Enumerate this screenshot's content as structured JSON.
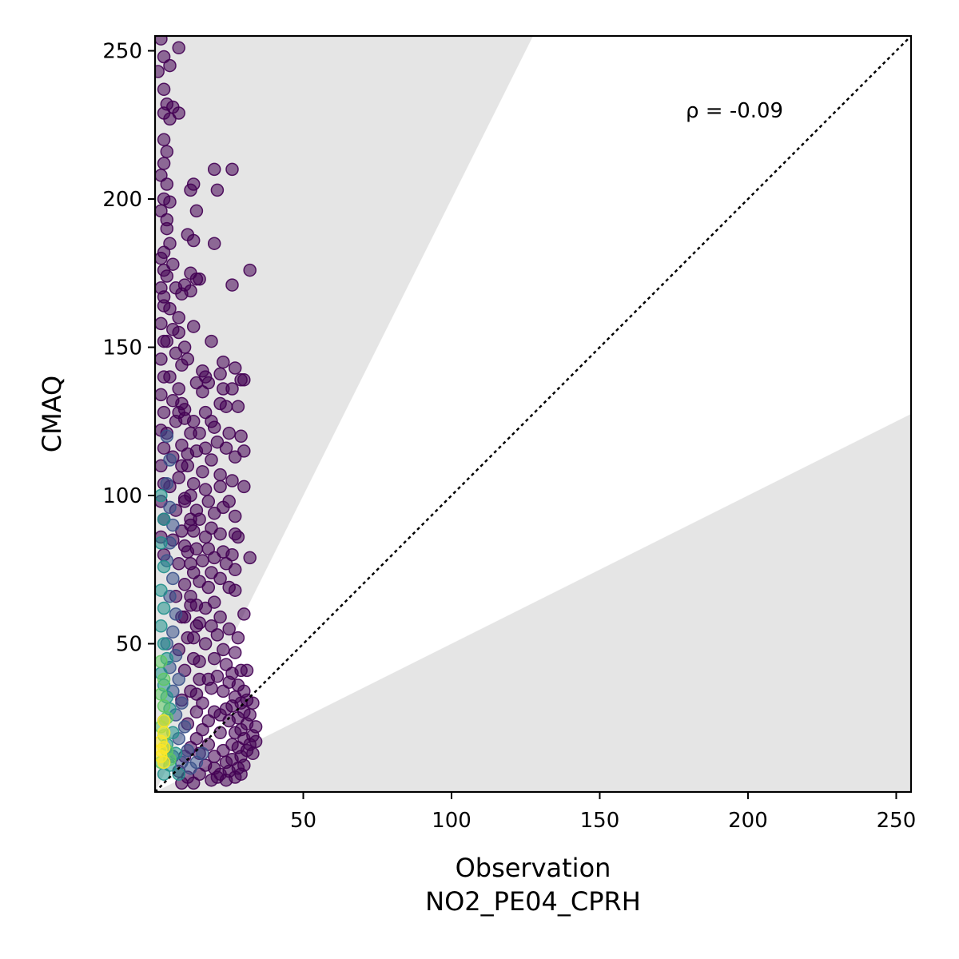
{
  "chart_data": {
    "type": "scatter",
    "title": "",
    "xlabel": "Observation",
    "xlabel_line2": "NO2_PE04_CPRH",
    "ylabel": "CMAQ",
    "xlim": [
      0,
      255
    ],
    "ylim": [
      0,
      255
    ],
    "xticks": [
      50,
      100,
      150,
      200,
      250
    ],
    "yticks": [
      50,
      100,
      150,
      200,
      250
    ],
    "annotation": "ρ = -0.09",
    "reference_line": {
      "style": "dotted",
      "slope": 1,
      "color": "#000000"
    },
    "shaded_bands": [
      {
        "description": "region above y = 2x",
        "slope": 2,
        "side": "above"
      },
      {
        "description": "region below y = 0.5x",
        "slope": 0.5,
        "side": "below"
      }
    ],
    "band_color": "#e5e5e5",
    "colormap": [
      "#440154",
      "#3b528b",
      "#21918c",
      "#5ec962",
      "#fde725"
    ],
    "colormap_name": "viridis (point density)",
    "marker_alpha": 0.55,
    "points": [
      [
        2,
        254,
        0
      ],
      [
        3,
        248,
        0
      ],
      [
        1,
        243,
        0
      ],
      [
        5,
        245,
        0
      ],
      [
        8,
        251,
        0
      ],
      [
        3,
        237,
        0
      ],
      [
        4,
        232,
        0
      ],
      [
        3,
        229,
        0
      ],
      [
        6,
        231,
        0
      ],
      [
        8,
        229,
        0
      ],
      [
        5,
        227,
        0
      ],
      [
        3,
        220,
        0
      ],
      [
        4,
        216,
        0
      ],
      [
        3,
        212,
        0
      ],
      [
        2,
        208,
        0
      ],
      [
        4,
        205,
        0
      ],
      [
        3,
        200,
        0
      ],
      [
        5,
        199,
        0
      ],
      [
        2,
        196,
        0
      ],
      [
        4,
        193,
        0
      ],
      [
        20,
        210,
        0
      ],
      [
        26,
        210,
        0
      ],
      [
        13,
        205,
        0
      ],
      [
        12,
        203,
        0
      ],
      [
        21,
        203,
        0
      ],
      [
        14,
        196,
        0
      ],
      [
        11,
        188,
        0
      ],
      [
        13,
        186,
        0
      ],
      [
        20,
        185,
        0
      ],
      [
        32,
        176,
        0
      ],
      [
        26,
        171,
        0
      ],
      [
        12,
        175,
        0
      ],
      [
        14,
        173,
        0
      ],
      [
        15,
        173,
        0
      ],
      [
        10,
        171,
        0
      ],
      [
        9,
        168,
        0
      ],
      [
        12,
        169,
        0
      ],
      [
        13,
        157,
        0
      ],
      [
        19,
        152,
        0
      ],
      [
        8,
        155,
        0
      ],
      [
        10,
        150,
        0
      ],
      [
        11,
        146,
        0
      ],
      [
        23,
        145,
        0
      ],
      [
        22,
        141,
        0
      ],
      [
        27,
        143,
        0
      ],
      [
        29,
        139,
        0
      ],
      [
        30,
        139,
        0
      ],
      [
        16,
        142,
        0
      ],
      [
        17,
        140,
        0
      ],
      [
        18,
        138,
        0
      ],
      [
        14,
        138,
        0
      ],
      [
        16,
        135,
        0
      ],
      [
        23,
        136,
        0
      ],
      [
        26,
        136,
        0
      ],
      [
        28,
        130,
        0
      ],
      [
        22,
        131,
        0
      ],
      [
        24,
        130,
        0
      ],
      [
        17,
        128,
        0
      ],
      [
        19,
        125,
        0
      ],
      [
        13,
        125,
        0
      ],
      [
        10,
        126,
        0
      ],
      [
        8,
        128,
        0
      ],
      [
        9,
        131,
        0
      ],
      [
        12,
        121,
        0
      ],
      [
        15,
        121,
        0
      ],
      [
        20,
        123,
        0
      ],
      [
        25,
        121,
        0
      ],
      [
        29,
        120,
        0
      ],
      [
        21,
        118,
        0
      ],
      [
        24,
        116,
        0
      ],
      [
        30,
        115,
        0
      ],
      [
        27,
        113,
        0
      ],
      [
        17,
        116,
        0
      ],
      [
        14,
        115,
        0
      ],
      [
        19,
        112,
        0
      ],
      [
        11,
        114,
        0
      ],
      [
        9,
        110,
        0
      ],
      [
        16,
        108,
        0
      ],
      [
        22,
        107,
        0
      ],
      [
        26,
        105,
        0
      ],
      [
        30,
        103,
        0
      ],
      [
        22,
        103,
        0
      ],
      [
        17,
        102,
        0
      ],
      [
        13,
        104,
        0
      ],
      [
        10,
        98,
        0
      ],
      [
        12,
        100,
        0
      ],
      [
        18,
        98,
        0
      ],
      [
        25,
        98,
        0
      ],
      [
        23,
        96,
        0
      ],
      [
        14,
        95,
        0
      ],
      [
        20,
        94,
        0
      ],
      [
        27,
        93,
        0
      ],
      [
        15,
        92,
        0
      ],
      [
        12,
        90,
        0
      ],
      [
        19,
        89,
        0
      ],
      [
        27,
        87,
        0
      ],
      [
        28,
        86,
        0
      ],
      [
        22,
        87,
        0
      ],
      [
        17,
        86,
        0
      ],
      [
        13,
        88,
        0
      ],
      [
        10,
        83,
        0
      ],
      [
        14,
        82,
        0
      ],
      [
        18,
        82,
        0
      ],
      [
        23,
        81,
        0
      ],
      [
        26,
        80,
        0
      ],
      [
        32,
        79,
        0
      ],
      [
        20,
        79,
        0
      ],
      [
        16,
        78,
        0
      ],
      [
        24,
        77,
        0
      ],
      [
        12,
        77,
        0
      ],
      [
        27,
        75,
        0
      ],
      [
        19,
        74,
        0
      ],
      [
        22,
        72,
        0
      ],
      [
        15,
        71,
        0
      ],
      [
        25,
        69,
        0
      ],
      [
        27,
        68,
        0
      ],
      [
        18,
        69,
        0
      ],
      [
        12,
        66,
        0
      ],
      [
        20,
        64,
        0
      ],
      [
        14,
        63,
        0
      ],
      [
        17,
        62,
        0
      ],
      [
        30,
        60,
        0
      ],
      [
        22,
        59,
        0
      ],
      [
        10,
        59,
        0
      ],
      [
        15,
        57,
        0
      ],
      [
        19,
        56,
        0
      ],
      [
        25,
        55,
        0
      ],
      [
        21,
        53,
        0
      ],
      [
        28,
        52,
        0
      ],
      [
        13,
        52,
        0
      ],
      [
        17,
        50,
        0
      ],
      [
        23,
        48,
        0
      ],
      [
        27,
        47,
        0
      ],
      [
        20,
        45,
        0
      ],
      [
        15,
        44,
        0
      ],
      [
        24,
        43,
        0
      ],
      [
        31,
        41,
        0
      ],
      [
        29,
        41,
        0
      ],
      [
        26,
        40,
        0
      ],
      [
        21,
        39,
        0
      ],
      [
        18,
        38,
        0
      ],
      [
        25,
        37,
        0
      ],
      [
        28,
        36,
        0
      ],
      [
        30,
        34,
        0
      ],
      [
        23,
        34,
        0
      ],
      [
        27,
        32,
        0
      ],
      [
        31,
        31,
        0
      ],
      [
        29,
        30,
        0
      ],
      [
        33,
        30,
        0
      ],
      [
        26,
        29,
        0
      ],
      [
        24,
        28,
        0
      ],
      [
        30,
        27,
        0
      ],
      [
        32,
        26,
        0
      ],
      [
        28,
        25,
        0
      ],
      [
        22,
        26,
        0
      ],
      [
        25,
        24,
        0
      ],
      [
        31,
        23,
        0
      ],
      [
        34,
        22,
        0
      ],
      [
        29,
        21,
        0
      ],
      [
        27,
        20,
        0
      ],
      [
        33,
        19,
        0
      ],
      [
        30,
        18,
        0
      ],
      [
        34,
        17,
        0
      ],
      [
        32,
        16,
        0
      ],
      [
        28,
        15,
        0
      ],
      [
        31,
        14,
        0
      ],
      [
        33,
        13,
        0
      ],
      [
        29,
        12,
        0
      ],
      [
        26,
        11,
        0
      ],
      [
        24,
        10,
        0
      ],
      [
        30,
        9,
        0
      ],
      [
        28,
        8,
        0
      ],
      [
        25,
        7,
        0
      ],
      [
        29,
        6,
        0
      ],
      [
        27,
        5,
        0
      ],
      [
        22,
        6,
        0
      ],
      [
        20,
        8,
        0
      ],
      [
        17,
        9,
        0
      ],
      [
        24,
        4,
        0
      ],
      [
        21,
        5,
        0
      ],
      [
        19,
        4,
        0
      ],
      [
        15,
        6,
        0
      ],
      [
        13,
        3,
        0
      ],
      [
        11,
        5,
        0
      ],
      [
        9,
        3,
        0
      ],
      [
        8,
        7,
        0
      ],
      [
        10,
        12,
        0
      ],
      [
        12,
        15,
        0
      ],
      [
        14,
        18,
        0
      ],
      [
        16,
        21,
        0
      ],
      [
        18,
        24,
        0
      ],
      [
        20,
        27,
        0
      ],
      [
        16,
        30,
        0
      ],
      [
        14,
        33,
        0
      ],
      [
        19,
        35,
        0
      ],
      [
        22,
        20,
        0
      ],
      [
        18,
        16,
        0
      ],
      [
        15,
        13,
        0
      ],
      [
        20,
        12,
        0
      ],
      [
        23,
        14,
        0
      ],
      [
        26,
        16,
        0
      ],
      [
        4,
        190,
        0
      ],
      [
        5,
        185,
        0
      ],
      [
        3,
        182,
        0
      ],
      [
        6,
        178,
        0
      ],
      [
        4,
        174,
        0
      ],
      [
        7,
        170,
        0
      ],
      [
        3,
        167,
        0
      ],
      [
        5,
        163,
        0
      ],
      [
        8,
        160,
        0
      ],
      [
        6,
        156,
        0
      ],
      [
        4,
        152,
        0
      ],
      [
        7,
        148,
        0
      ],
      [
        9,
        144,
        0
      ],
      [
        5,
        140,
        0
      ],
      [
        8,
        136,
        0
      ],
      [
        6,
        132,
        0
      ],
      [
        10,
        129,
        0
      ],
      [
        7,
        125,
        0
      ],
      [
        4,
        121,
        0
      ],
      [
        9,
        117,
        0
      ],
      [
        6,
        113,
        0
      ],
      [
        11,
        110,
        0
      ],
      [
        8,
        106,
        0
      ],
      [
        5,
        103,
        0
      ],
      [
        10,
        99,
        0
      ],
      [
        7,
        95,
        0
      ],
      [
        12,
        92,
        0
      ],
      [
        9,
        88,
        0
      ],
      [
        6,
        85,
        0
      ],
      [
        11,
        81,
        0
      ],
      [
        8,
        77,
        0
      ],
      [
        13,
        74,
        0
      ],
      [
        10,
        70,
        0
      ],
      [
        7,
        66,
        0
      ],
      [
        12,
        63,
        0
      ],
      [
        9,
        59,
        0
      ],
      [
        14,
        56,
        0
      ],
      [
        11,
        52,
        0
      ],
      [
        8,
        48,
        0
      ],
      [
        13,
        45,
        0
      ],
      [
        10,
        41,
        0
      ],
      [
        15,
        38,
        0
      ],
      [
        12,
        34,
        0
      ],
      [
        9,
        31,
        0
      ],
      [
        14,
        27,
        0
      ],
      [
        11,
        23,
        0
      ],
      [
        2,
        180,
        0
      ],
      [
        3,
        176,
        0
      ],
      [
        2,
        170,
        0
      ],
      [
        3,
        164,
        0
      ],
      [
        2,
        158,
        0
      ],
      [
        3,
        152,
        0
      ],
      [
        2,
        146,
        0
      ],
      [
        3,
        140,
        0
      ],
      [
        2,
        134,
        0
      ],
      [
        3,
        128,
        0
      ],
      [
        2,
        122,
        0
      ],
      [
        3,
        116,
        0
      ],
      [
        2,
        110,
        0
      ],
      [
        3,
        104,
        0
      ],
      [
        2,
        98,
        0
      ],
      [
        3,
        92,
        0
      ],
      [
        2,
        86,
        0
      ],
      [
        3,
        80,
        0
      ],
      [
        4,
        120,
        1
      ],
      [
        5,
        112,
        1
      ],
      [
        4,
        104,
        1
      ],
      [
        5,
        96,
        1
      ],
      [
        6,
        90,
        1
      ],
      [
        5,
        84,
        1
      ],
      [
        4,
        78,
        1
      ],
      [
        6,
        72,
        1
      ],
      [
        5,
        66,
        1
      ],
      [
        7,
        60,
        1
      ],
      [
        6,
        54,
        1
      ],
      [
        4,
        50,
        1
      ],
      [
        7,
        46,
        1
      ],
      [
        5,
        42,
        1
      ],
      [
        8,
        38,
        1
      ],
      [
        6,
        34,
        1
      ],
      [
        9,
        30,
        1
      ],
      [
        7,
        26,
        1
      ],
      [
        10,
        22,
        1
      ],
      [
        8,
        18,
        1
      ],
      [
        11,
        14,
        1
      ],
      [
        9,
        10,
        1
      ],
      [
        12,
        8,
        1
      ],
      [
        6,
        12,
        1
      ],
      [
        14,
        10,
        1
      ],
      [
        16,
        13,
        1
      ],
      [
        2,
        100,
        2
      ],
      [
        3,
        92,
        2
      ],
      [
        2,
        84,
        2
      ],
      [
        3,
        76,
        2
      ],
      [
        2,
        68,
        2
      ],
      [
        3,
        62,
        2
      ],
      [
        2,
        56,
        2
      ],
      [
        3,
        50,
        2
      ],
      [
        4,
        45,
        2
      ],
      [
        2,
        40,
        2
      ],
      [
        3,
        36,
        2
      ],
      [
        4,
        32,
        2
      ],
      [
        5,
        28,
        2
      ],
      [
        3,
        24,
        2
      ],
      [
        6,
        20,
        2
      ],
      [
        4,
        16,
        2
      ],
      [
        7,
        13,
        2
      ],
      [
        5,
        9,
        2
      ],
      [
        8,
        6,
        2
      ],
      [
        3,
        6,
        2
      ],
      [
        2,
        44,
        3
      ],
      [
        3,
        38,
        3
      ],
      [
        2,
        33,
        3
      ],
      [
        3,
        29,
        3
      ],
      [
        4,
        25,
        3
      ],
      [
        2,
        22,
        3
      ],
      [
        3,
        19,
        3
      ],
      [
        4,
        14,
        3
      ],
      [
        2,
        10,
        3
      ],
      [
        5,
        11,
        3
      ],
      [
        3,
        24,
        4
      ],
      [
        3,
        20,
        4
      ],
      [
        2,
        17,
        4
      ],
      [
        3,
        15,
        4
      ],
      [
        2,
        12,
        4
      ],
      [
        3,
        10,
        4
      ],
      [
        2,
        14,
        4
      ]
    ]
  }
}
